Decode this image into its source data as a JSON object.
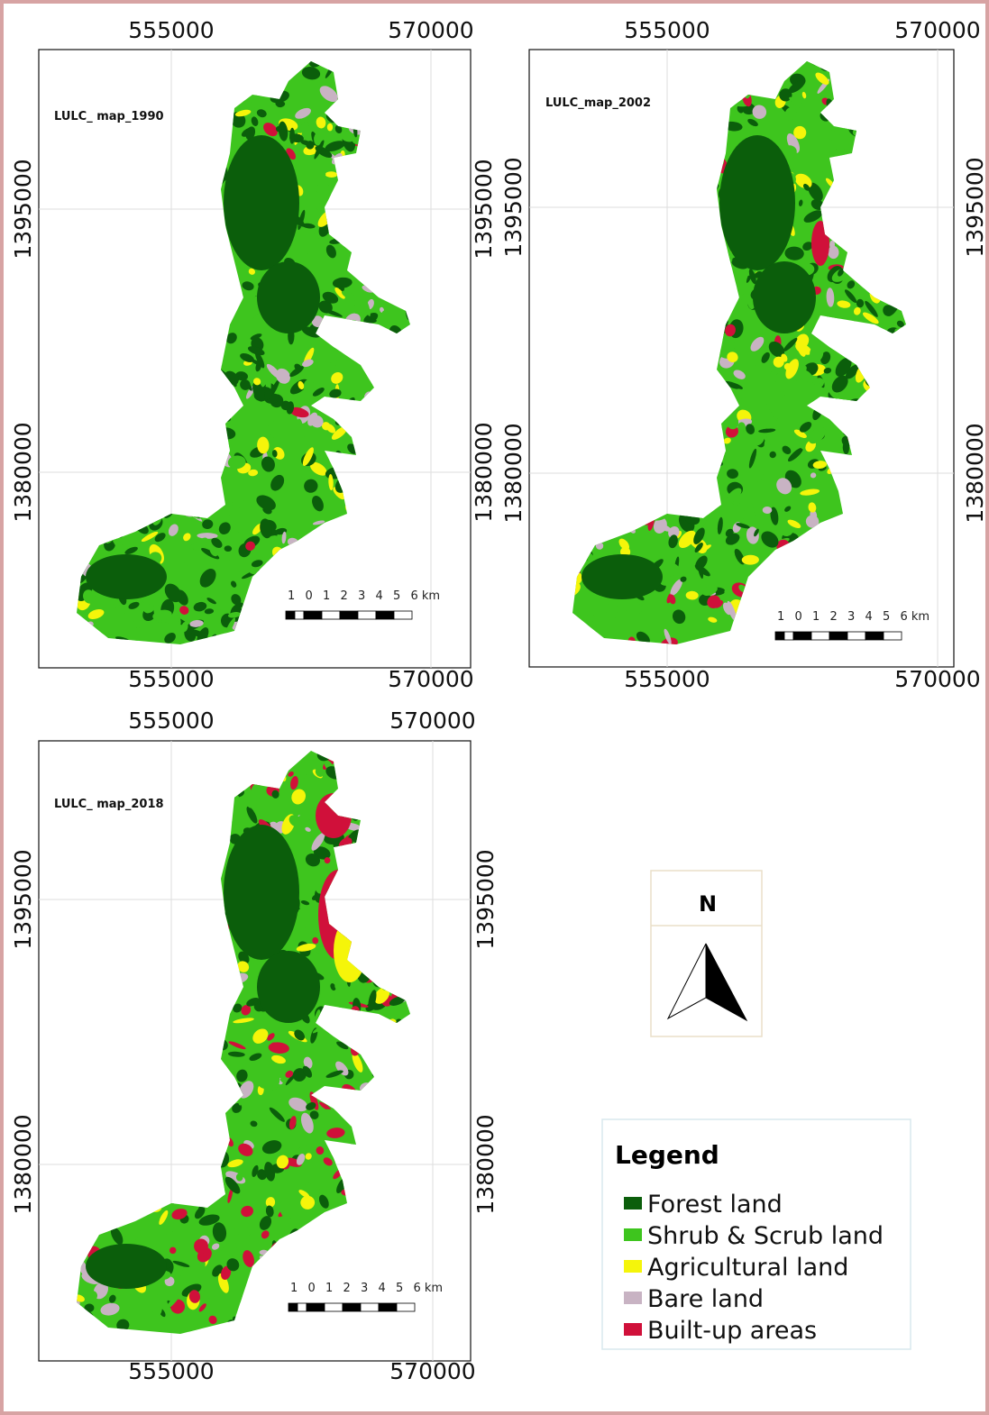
{
  "panels": [
    {
      "title": "LULC_ map_1990",
      "x_top": [
        "555000",
        "570000"
      ],
      "x_bottom": [
        "555000",
        "570000"
      ],
      "y_left": [
        "1395000",
        "1380000"
      ],
      "y_right": [
        "1395000",
        "1380000"
      ],
      "scale_labels": [
        "1",
        "0",
        "1",
        "2",
        "3",
        "4",
        "5",
        "6 km"
      ]
    },
    {
      "title": "LULC_map_2002",
      "x_top": [
        "555000",
        "570000"
      ],
      "x_bottom": [
        "555000",
        "570000"
      ],
      "y_left": [
        "1395000",
        "1380000"
      ],
      "y_right": [
        "1395000",
        "1380000"
      ],
      "scale_labels": [
        "1",
        "0",
        "1",
        "2",
        "3",
        "4",
        "5",
        "6 km"
      ]
    },
    {
      "title": "LULC_ map_2018",
      "x_top": [
        "555000",
        "570000"
      ],
      "x_bottom": [
        "555000",
        "570000"
      ],
      "y_left": [
        "1395000",
        "1380000"
      ],
      "y_right": [
        "1395000",
        "1380000"
      ],
      "scale_labels": [
        "1",
        "0",
        "1",
        "2",
        "3",
        "4",
        "5",
        "6 km"
      ]
    }
  ],
  "north_arrow": {
    "label": "N"
  },
  "legend": {
    "title": "Legend",
    "items": [
      {
        "label": "Forest land",
        "color": "#0b5e0b"
      },
      {
        "label": "Shrub & Scrub land",
        "color": "#3ec51e"
      },
      {
        "label": "Agricultural land",
        "color": "#f5f50a"
      },
      {
        "label": "Bare land",
        "color": "#c8b3c3"
      },
      {
        "label": "Built-up areas",
        "color": "#d0103a"
      }
    ]
  }
}
